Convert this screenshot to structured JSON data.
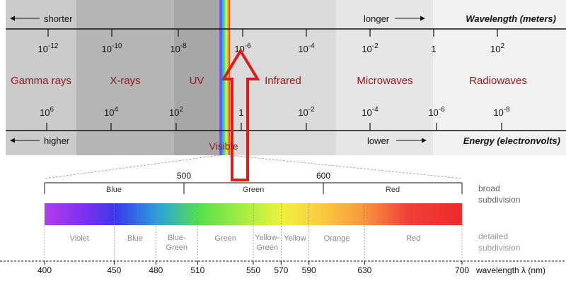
{
  "spectrum": {
    "wavelength_axis": {
      "left_note": "shorter",
      "right_note": "longer",
      "title": "Wavelength (meters)",
      "ticks": [
        {
          "base": "10",
          "exp": "-12"
        },
        {
          "base": "10",
          "exp": "-10"
        },
        {
          "base": "10",
          "exp": "-8"
        },
        {
          "base": "10",
          "exp": "-6"
        },
        {
          "base": "10",
          "exp": "-4"
        },
        {
          "base": "10",
          "exp": "-2"
        },
        {
          "base": "1",
          "exp": ""
        },
        {
          "base": "10",
          "exp": "2"
        }
      ]
    },
    "bands": [
      "Gamma rays",
      "X-rays",
      "UV",
      "Infrared",
      "Microwaves",
      "Radiowaves"
    ],
    "energy_axis": {
      "left_note": "higher",
      "right_note": "lower",
      "title": "Energy (electronvolts)",
      "ticks": [
        {
          "base": "10",
          "exp": "6"
        },
        {
          "base": "10",
          "exp": "4"
        },
        {
          "base": "10",
          "exp": "2"
        },
        {
          "base": "1",
          "exp": ""
        },
        {
          "base": "10",
          "exp": "-2"
        },
        {
          "base": "10",
          "exp": "-4"
        },
        {
          "base": "10",
          "exp": "-6"
        },
        {
          "base": "10",
          "exp": "-8"
        }
      ]
    },
    "visible_label": "Visible"
  },
  "visible_detail": {
    "top_ticks": [
      "500",
      "600"
    ],
    "broad": [
      "Blue",
      "Green",
      "Red"
    ],
    "broad_label": [
      "broad",
      "subdivision"
    ],
    "detailed": [
      [
        "Violet"
      ],
      [
        "Blue"
      ],
      [
        "Blue-",
        "Green"
      ],
      [
        "Green"
      ],
      [
        "Yellow-",
        "Green"
      ],
      [
        "Yellow"
      ],
      [
        "Orange"
      ],
      [
        "Red"
      ]
    ],
    "detailed_label": [
      "detailed",
      "subdivision"
    ],
    "wavelength_ticks": [
      "400",
      "450",
      "480",
      "510",
      "550",
      "570",
      "590",
      "630",
      "700"
    ],
    "axis_label": "wavelength λ (nm)"
  },
  "colors": {
    "band_text": "#8b1a1a",
    "arrow": "#d62020",
    "axis": "#111111"
  }
}
